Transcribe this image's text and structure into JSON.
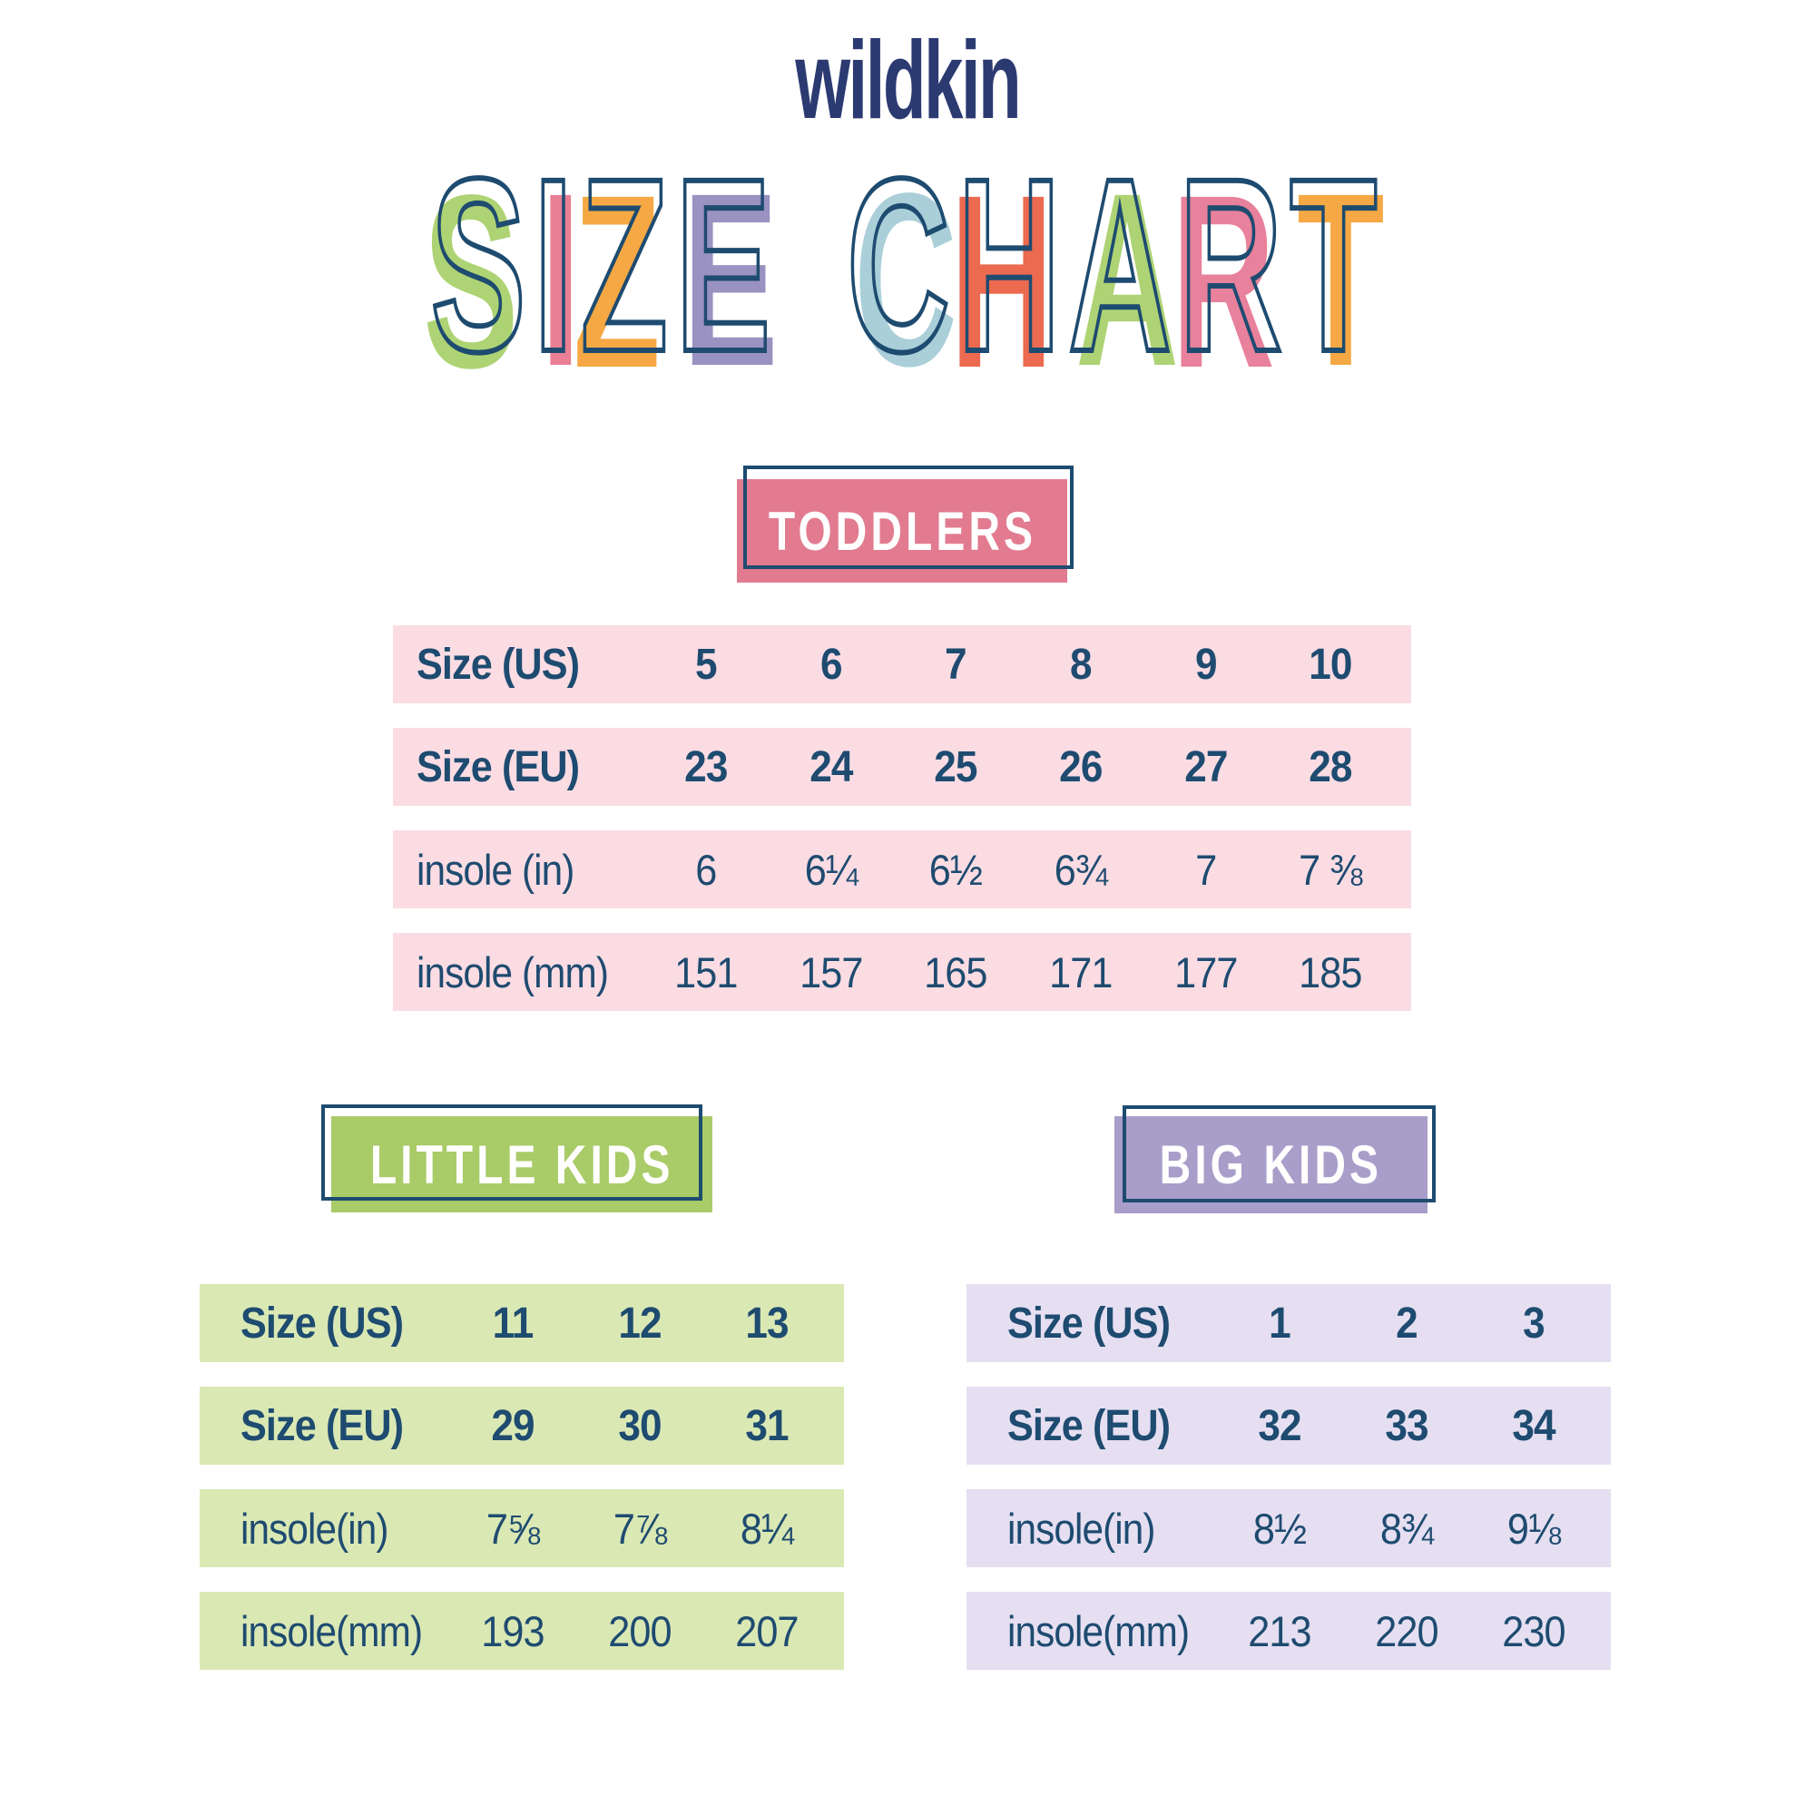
{
  "logo": {
    "text": "wildkin",
    "color": "#2c3a72"
  },
  "title": {
    "text": "SIZE CHART",
    "outline_color": "#1e4b70",
    "letters": [
      {
        "ch": "S",
        "color": "#aed374"
      },
      {
        "ch": "I",
        "color": "#e87f95"
      },
      {
        "ch": "Z",
        "color": "#f5a843"
      },
      {
        "ch": "E",
        "color": "#9a92c0"
      },
      {
        "ch": " ",
        "color": ""
      },
      {
        "ch": "C",
        "color": "#aacfd9"
      },
      {
        "ch": "H",
        "color": "#eb6a50"
      },
      {
        "ch": "A",
        "color": "#aed374"
      },
      {
        "ch": "R",
        "color": "#e8819b"
      },
      {
        "ch": "T",
        "color": "#f5a843"
      }
    ]
  },
  "colors": {
    "navy_text": "#1e4b70",
    "background": "#ffffff",
    "toddlers_badge": "#e27b90",
    "toddlers_row": "#fbdce3",
    "little_kids_badge": "#a9cb68",
    "little_kids_row": "#dae8b4",
    "big_kids_badge": "#a99dc9",
    "big_kids_row": "#e5dff1"
  },
  "chart_data": [
    {
      "type": "table",
      "title": "TODDLERS",
      "badge_color": "#e27b90",
      "row_color": "#fbdce3",
      "rows": [
        {
          "label": "Size (US)",
          "bold": true,
          "values": [
            "5",
            "6",
            "7",
            "8",
            "9",
            "10"
          ]
        },
        {
          "label": "Size (EU)",
          "bold": true,
          "values": [
            "23",
            "24",
            "25",
            "26",
            "27",
            "28"
          ]
        },
        {
          "label": "insole (in)",
          "bold": false,
          "values": [
            "6",
            "6¼",
            "6½",
            "6¾",
            "7",
            "7 ⅜"
          ]
        },
        {
          "label": "insole (mm)",
          "bold": false,
          "values": [
            "151",
            "157",
            "165",
            "171",
            "177",
            "185"
          ]
        }
      ]
    },
    {
      "type": "table",
      "title": "LITTLE KIDS",
      "badge_color": "#a9cb68",
      "row_color": "#dae8b4",
      "rows": [
        {
          "label": "Size (US)",
          "bold": true,
          "values": [
            "11",
            "12",
            "13"
          ]
        },
        {
          "label": "Size (EU)",
          "bold": true,
          "values": [
            "29",
            "30",
            "31"
          ]
        },
        {
          "label": "insole(in)",
          "bold": false,
          "values": [
            "7⅝",
            "7⅞",
            "8¼"
          ]
        },
        {
          "label": "insole(mm)",
          "bold": false,
          "values": [
            "193",
            "200",
            "207"
          ]
        }
      ]
    },
    {
      "type": "table",
      "title": "BIG KIDS",
      "badge_color": "#a99dc9",
      "row_color": "#e5dff1",
      "rows": [
        {
          "label": "Size (US)",
          "bold": true,
          "values": [
            "1",
            "2",
            "3"
          ]
        },
        {
          "label": "Size (EU)",
          "bold": true,
          "values": [
            "32",
            "33",
            "34"
          ]
        },
        {
          "label": "insole(in)",
          "bold": false,
          "values": [
            "8½",
            "8¾",
            "9⅛"
          ]
        },
        {
          "label": "insole(mm)",
          "bold": false,
          "values": [
            "213",
            "220",
            "230"
          ]
        }
      ]
    }
  ]
}
